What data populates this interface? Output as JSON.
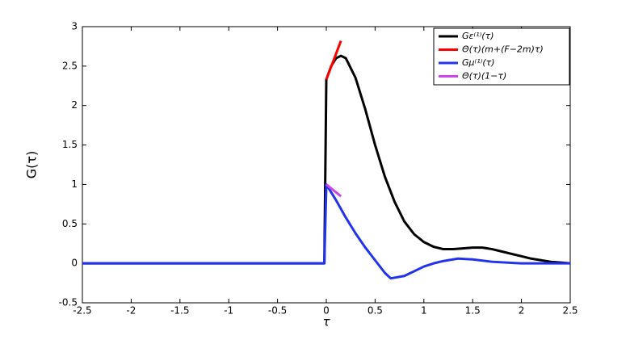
{
  "chart_data": {
    "type": "line",
    "xlabel": "τ",
    "ylabel": "G(τ)",
    "xlim": [
      -2.5,
      2.5
    ],
    "ylim": [
      -0.5,
      3
    ],
    "xticks": [
      -2.5,
      -2,
      -1.5,
      -1,
      -0.5,
      0,
      0.5,
      1,
      1.5,
      2,
      2.5
    ],
    "yticks": [
      -0.5,
      0,
      0.5,
      1,
      1.5,
      2,
      2.5,
      3
    ],
    "legend": "upper right",
    "series": [
      {
        "name": "Gε⁽¹⁾(τ)",
        "color": "#000000",
        "x": [
          -2.5,
          -1.5,
          -0.5,
          -0.02,
          0,
          0.05,
          0.1,
          0.15,
          0.2,
          0.3,
          0.4,
          0.5,
          0.6,
          0.7,
          0.8,
          0.9,
          1.0,
          1.1,
          1.2,
          1.3,
          1.4,
          1.5,
          1.6,
          1.7,
          1.8,
          1.9,
          2.0,
          2.1,
          2.2,
          2.3,
          2.4,
          2.5
        ],
        "values": [
          0,
          0,
          0,
          0,
          2.33,
          2.5,
          2.6,
          2.63,
          2.6,
          2.35,
          1.95,
          1.5,
          1.1,
          0.78,
          0.53,
          0.37,
          0.27,
          0.21,
          0.18,
          0.18,
          0.19,
          0.2,
          0.2,
          0.18,
          0.15,
          0.12,
          0.09,
          0.06,
          0.04,
          0.02,
          0.01,
          0
        ]
      },
      {
        "name": "Θ(τ)(m+(F−2m)τ)",
        "color": "#ff0000",
        "x": [
          0,
          0.15
        ],
        "values": [
          2.33,
          2.82
        ]
      },
      {
        "name": "Gμ⁽¹⁾(τ)",
        "color": "#2233ee",
        "x": [
          -2.5,
          -1.5,
          -0.5,
          -0.02,
          0,
          0.1,
          0.2,
          0.3,
          0.4,
          0.5,
          0.6,
          0.66,
          0.8,
          0.9,
          1.0,
          1.1,
          1.2,
          1.35,
          1.5,
          1.7,
          2.0,
          2.5
        ],
        "values": [
          0,
          0,
          0,
          0,
          1,
          0.8,
          0.58,
          0.38,
          0.2,
          0.04,
          -0.12,
          -0.19,
          -0.16,
          -0.1,
          -0.04,
          0.0,
          0.03,
          0.06,
          0.05,
          0.02,
          0,
          0
        ]
      },
      {
        "name": "Θ(τ)(1−τ)",
        "color": "#cc44ee",
        "x": [
          0,
          0.15
        ],
        "values": [
          1,
          0.85
        ]
      }
    ]
  }
}
